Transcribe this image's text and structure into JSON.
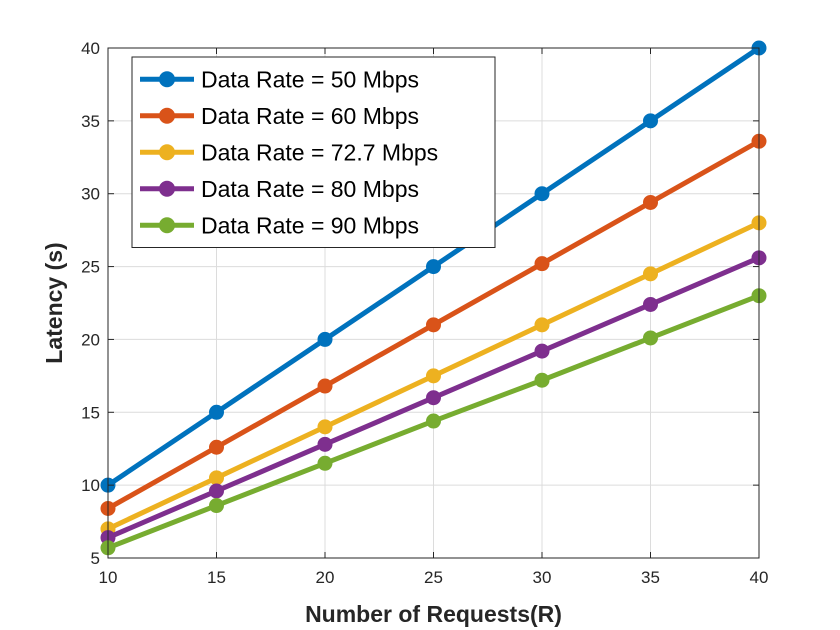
{
  "chart_data": {
    "type": "line",
    "xlabel": "Number of Requests(R)",
    "ylabel": "Latency (s)",
    "xlim": [
      10,
      40
    ],
    "ylim": [
      5,
      40
    ],
    "xticks": [
      10,
      15,
      20,
      25,
      30,
      35,
      40
    ],
    "yticks": [
      5,
      10,
      15,
      20,
      25,
      30,
      35,
      40
    ],
    "grid": true,
    "legend_position": "top-left",
    "x": [
      10,
      15,
      20,
      25,
      30,
      35,
      40
    ],
    "series": [
      {
        "name": "Data Rate = 50 Mbps",
        "color": "#0072BD",
        "values": [
          10,
          15,
          20,
          25,
          30,
          35,
          40
        ]
      },
      {
        "name": "Data Rate = 60 Mbps",
        "color": "#D95319",
        "values": [
          8.4,
          12.6,
          16.8,
          21,
          25.2,
          29.4,
          33.6
        ]
      },
      {
        "name": "Data Rate = 72.7 Mbps",
        "color": "#EDB120",
        "values": [
          7,
          10.5,
          14,
          17.5,
          21,
          24.5,
          28
        ]
      },
      {
        "name": "Data Rate = 80 Mbps",
        "color": "#7E2F8E",
        "values": [
          6.4,
          9.6,
          12.8,
          16,
          19.2,
          22.4,
          25.6
        ]
      },
      {
        "name": "Data Rate = 90 Mbps",
        "color": "#77AC30",
        "values": [
          5.7,
          8.6,
          11.5,
          14.4,
          17.2,
          20.1,
          23
        ]
      }
    ]
  }
}
